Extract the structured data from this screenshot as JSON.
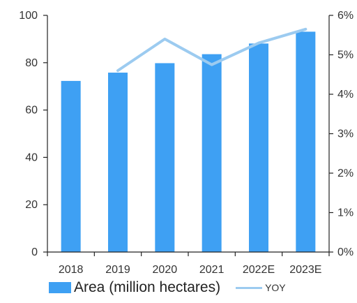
{
  "chart_data": {
    "type": "bar",
    "title": "",
    "xlabel": "",
    "categories": [
      "2018",
      "2019",
      "2020",
      "2021",
      "2022E",
      "2023E"
    ],
    "series": [
      {
        "name": "Area (million hectares)",
        "type": "bar",
        "axis": "left",
        "values": [
          72.3,
          75.8,
          79.8,
          83.6,
          88.1,
          93.1
        ],
        "color": "#3ea0f3"
      },
      {
        "name": "YOY",
        "type": "line",
        "axis": "right",
        "values": [
          null,
          4.6,
          5.4,
          4.75,
          5.3,
          5.65
        ],
        "color": "#9ccbf0"
      }
    ],
    "left_axis": {
      "ylim": [
        0,
        100
      ],
      "ticks": [
        "0",
        "20",
        "40",
        "60",
        "80",
        "100"
      ]
    },
    "right_axis": {
      "ylim": [
        0,
        6
      ],
      "ticks": [
        "0%",
        "1%",
        "2%",
        "3%",
        "4%",
        "5%",
        "6%"
      ],
      "format": "percent"
    },
    "grid": false,
    "legend": "bottom"
  },
  "legend": {
    "area_label": "Area (million hectares)",
    "yoy_label": "YOY"
  }
}
